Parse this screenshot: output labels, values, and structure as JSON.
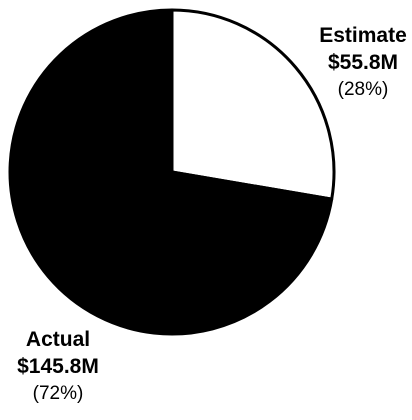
{
  "chart_data": {
    "type": "pie",
    "title": "",
    "slices": [
      {
        "label": "Estimate",
        "value": 55.8,
        "value_label": "$55.8M",
        "percent_label": "(28%)",
        "color": "#ffffff"
      },
      {
        "label": "Actual",
        "value": 145.8,
        "value_label": "$145.8M",
        "percent_label": "(72%)",
        "color": "#000000"
      }
    ],
    "start_angle": "12 o'clock",
    "direction": "clockwise",
    "stroke_color": "#000000",
    "legend": "none"
  }
}
